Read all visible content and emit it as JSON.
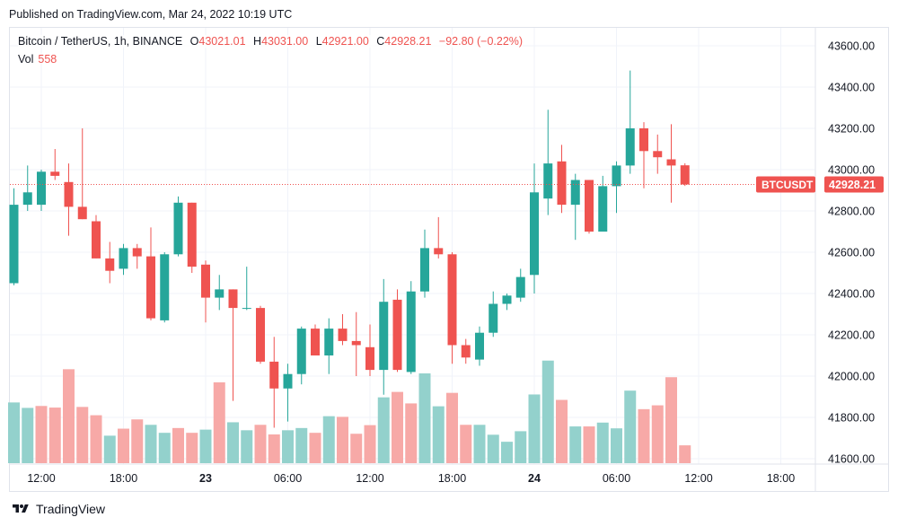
{
  "header": {
    "published": "Published on TradingView.com, Mar 24, 2022 10:19 UTC"
  },
  "legend": {
    "symbol": "Bitcoin / TetherUS, 1h, BINANCE",
    "open_label": "O",
    "open": "43021.01",
    "high_label": "H",
    "high": "43031.00",
    "low_label": "L",
    "low": "42921.00",
    "close_label": "C",
    "close": "42928.21",
    "change": "−92.80 (−0.22%)",
    "volume_label": "Vol",
    "volume": "558"
  },
  "price_tag": {
    "symbol": "BTCUSDT",
    "price": "42928.21"
  },
  "footer": {
    "brand": "TradingView",
    "logo_icon": "tradingview-logo-icon"
  },
  "colors": {
    "up": "#26a69a",
    "down": "#ef5350",
    "up_volume": "#93d1cc",
    "down_volume": "#f7a9a7",
    "grid": "#f0f3fa",
    "axis_text": "#131722",
    "price_line": "#ef5350"
  },
  "chart_data": {
    "type": "candlestick",
    "interval": "1h",
    "price_axis": {
      "ticks": [
        41600,
        41800,
        42000,
        42200,
        42400,
        42600,
        42800,
        43000,
        43200,
        43400,
        43600
      ],
      "tick_labels": [
        "41600.00",
        "41800.00",
        "42000.00",
        "42200.00",
        "42400.00",
        "42600.00",
        "42800.00",
        "43000.00",
        "43200.00",
        "43400.00",
        "43600.00"
      ],
      "range": [
        41590,
        43620
      ],
      "position": "right"
    },
    "time_axis": {
      "tick_labels": [
        "12:00",
        "18:00",
        "23",
        "06:00",
        "12:00",
        "18:00",
        "24",
        "06:00",
        "12:00",
        "18:00"
      ],
      "tick_candle_index": [
        2,
        8,
        14,
        20,
        26,
        32,
        38,
        44,
        50,
        56
      ],
      "bold_labels": [
        "23",
        "24"
      ]
    },
    "last_price": 42928.21,
    "grid": true,
    "candles": [
      {
        "o": 42450,
        "h": 42910,
        "l": 42440,
        "c": 42830
      },
      {
        "o": 42830,
        "h": 43020,
        "l": 42800,
        "c": 42890
      },
      {
        "o": 42830,
        "h": 43000,
        "l": 42800,
        "c": 42990
      },
      {
        "o": 42990,
        "h": 43100,
        "l": 42950,
        "c": 42970
      },
      {
        "o": 42940,
        "h": 43030,
        "l": 42680,
        "c": 42820
      },
      {
        "o": 42820,
        "h": 43200,
        "l": 42760,
        "c": 42760
      },
      {
        "o": 42750,
        "h": 42780,
        "l": 42570,
        "c": 42570
      },
      {
        "o": 42570,
        "h": 42650,
        "l": 42450,
        "c": 42510
      },
      {
        "o": 42520,
        "h": 42640,
        "l": 42490,
        "c": 42620
      },
      {
        "o": 42620,
        "h": 42640,
        "l": 42520,
        "c": 42580
      },
      {
        "o": 42580,
        "h": 42720,
        "l": 42270,
        "c": 42280
      },
      {
        "o": 42270,
        "h": 42600,
        "l": 42260,
        "c": 42590
      },
      {
        "o": 42590,
        "h": 42870,
        "l": 42580,
        "c": 42840
      },
      {
        "o": 42840,
        "h": 42840,
        "l": 42500,
        "c": 42530
      },
      {
        "o": 42540,
        "h": 42560,
        "l": 42260,
        "c": 42380
      },
      {
        "o": 42380,
        "h": 42490,
        "l": 42320,
        "c": 42420
      },
      {
        "o": 42420,
        "h": 42420,
        "l": 41880,
        "c": 42330
      },
      {
        "o": 42330,
        "h": 42530,
        "l": 42320,
        "c": 42330
      },
      {
        "o": 42330,
        "h": 42340,
        "l": 42060,
        "c": 42070
      },
      {
        "o": 42070,
        "h": 42190,
        "l": 41750,
        "c": 41940
      },
      {
        "o": 41940,
        "h": 42060,
        "l": 41780,
        "c": 42010
      },
      {
        "o": 42010,
        "h": 42240,
        "l": 41960,
        "c": 42230
      },
      {
        "o": 42230,
        "h": 42250,
        "l": 42100,
        "c": 42100
      },
      {
        "o": 42100,
        "h": 42280,
        "l": 42010,
        "c": 42230
      },
      {
        "o": 42230,
        "h": 42300,
        "l": 42150,
        "c": 42170
      },
      {
        "o": 42170,
        "h": 42310,
        "l": 42000,
        "c": 42150
      },
      {
        "o": 42140,
        "h": 42250,
        "l": 42000,
        "c": 42030
      },
      {
        "o": 42030,
        "h": 42470,
        "l": 41910,
        "c": 42360
      },
      {
        "o": 42370,
        "h": 42420,
        "l": 42020,
        "c": 42030
      },
      {
        "o": 42020,
        "h": 42460,
        "l": 42010,
        "c": 42410
      },
      {
        "o": 42410,
        "h": 42710,
        "l": 42380,
        "c": 42620
      },
      {
        "o": 42620,
        "h": 42770,
        "l": 42570,
        "c": 42590
      },
      {
        "o": 42590,
        "h": 42600,
        "l": 42060,
        "c": 42150
      },
      {
        "o": 42150,
        "h": 42180,
        "l": 42060,
        "c": 42090
      },
      {
        "o": 42080,
        "h": 42240,
        "l": 42050,
        "c": 42210
      },
      {
        "o": 42210,
        "h": 42410,
        "l": 42190,
        "c": 42350
      },
      {
        "o": 42350,
        "h": 42400,
        "l": 42320,
        "c": 42390
      },
      {
        "o": 42380,
        "h": 42520,
        "l": 42360,
        "c": 42480
      },
      {
        "o": 42490,
        "h": 43030,
        "l": 42400,
        "c": 42890
      },
      {
        "o": 42860,
        "h": 43290,
        "l": 42780,
        "c": 43030
      },
      {
        "o": 43040,
        "h": 43120,
        "l": 42790,
        "c": 42830
      },
      {
        "o": 42830,
        "h": 42980,
        "l": 42660,
        "c": 42950
      },
      {
        "o": 42950,
        "h": 42950,
        "l": 42690,
        "c": 42700
      },
      {
        "o": 42700,
        "h": 42970,
        "l": 42700,
        "c": 42920
      },
      {
        "o": 42920,
        "h": 43040,
        "l": 42790,
        "c": 43020
      },
      {
        "o": 43020,
        "h": 43480,
        "l": 42980,
        "c": 43200
      },
      {
        "o": 43200,
        "h": 43230,
        "l": 42910,
        "c": 43090
      },
      {
        "o": 43090,
        "h": 43170,
        "l": 42980,
        "c": 43060
      },
      {
        "o": 43050,
        "h": 43220,
        "l": 42840,
        "c": 43020
      },
      {
        "o": 43021.01,
        "h": 43031.0,
        "l": 42921.0,
        "c": 42928.21
      }
    ],
    "volumes": [
      {
        "v": 1900,
        "dir": "up"
      },
      {
        "v": 1730,
        "dir": "up"
      },
      {
        "v": 1790,
        "dir": "down"
      },
      {
        "v": 1740,
        "dir": "down"
      },
      {
        "v": 2940,
        "dir": "down"
      },
      {
        "v": 1760,
        "dir": "down"
      },
      {
        "v": 1500,
        "dir": "down"
      },
      {
        "v": 860,
        "dir": "up"
      },
      {
        "v": 1080,
        "dir": "down"
      },
      {
        "v": 1370,
        "dir": "down"
      },
      {
        "v": 1200,
        "dir": "up"
      },
      {
        "v": 950,
        "dir": "up"
      },
      {
        "v": 1100,
        "dir": "down"
      },
      {
        "v": 950,
        "dir": "down"
      },
      {
        "v": 1050,
        "dir": "up"
      },
      {
        "v": 2530,
        "dir": "down"
      },
      {
        "v": 1280,
        "dir": "up"
      },
      {
        "v": 1030,
        "dir": "up"
      },
      {
        "v": 1200,
        "dir": "down"
      },
      {
        "v": 900,
        "dir": "down"
      },
      {
        "v": 1030,
        "dir": "up"
      },
      {
        "v": 1100,
        "dir": "up"
      },
      {
        "v": 950,
        "dir": "down"
      },
      {
        "v": 1470,
        "dir": "up"
      },
      {
        "v": 1450,
        "dir": "down"
      },
      {
        "v": 920,
        "dir": "down"
      },
      {
        "v": 1190,
        "dir": "down"
      },
      {
        "v": 2060,
        "dir": "up"
      },
      {
        "v": 2230,
        "dir": "down"
      },
      {
        "v": 1870,
        "dir": "down"
      },
      {
        "v": 2810,
        "dir": "up"
      },
      {
        "v": 1780,
        "dir": "up"
      },
      {
        "v": 2200,
        "dir": "down"
      },
      {
        "v": 1200,
        "dir": "down"
      },
      {
        "v": 1200,
        "dir": "up"
      },
      {
        "v": 890,
        "dir": "up"
      },
      {
        "v": 670,
        "dir": "up"
      },
      {
        "v": 1000,
        "dir": "up"
      },
      {
        "v": 2150,
        "dir": "up"
      },
      {
        "v": 3210,
        "dir": "up"
      },
      {
        "v": 1980,
        "dir": "down"
      },
      {
        "v": 1150,
        "dir": "up"
      },
      {
        "v": 1150,
        "dir": "down"
      },
      {
        "v": 1270,
        "dir": "up"
      },
      {
        "v": 1090,
        "dir": "up"
      },
      {
        "v": 2270,
        "dir": "up"
      },
      {
        "v": 1690,
        "dir": "down"
      },
      {
        "v": 1810,
        "dir": "down"
      },
      {
        "v": 2690,
        "dir": "down"
      },
      {
        "v": 558,
        "dir": "down"
      }
    ]
  }
}
